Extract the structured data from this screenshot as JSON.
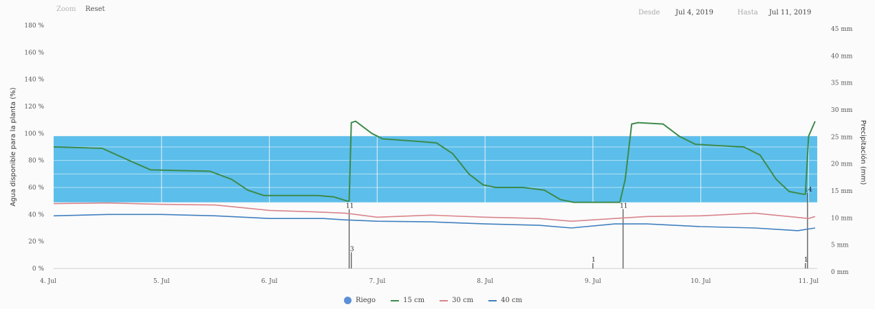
{
  "toolbar": {
    "zoom_label": "Zoom",
    "reset_label": "Reset"
  },
  "range": {
    "from_label": "Desde",
    "from_value": "Jul 4, 2019",
    "to_label": "Hasta",
    "to_value": "Jul 11, 2019"
  },
  "colors": {
    "band": "#3fb3e6",
    "grid": "#ffffff",
    "riego": "#5b8fd6",
    "s15": "#3c8a4a",
    "s30": "#d9838b",
    "s40": "#3f7fbf"
  },
  "chart_data": {
    "type": "line",
    "ylabel": "Agua disponible para la planta (%)",
    "y2label": "Precipitación (mm)",
    "ylim": [
      0,
      180
    ],
    "y2lim": [
      0,
      45
    ],
    "yticks": [
      "0 %",
      "20 %",
      "40 %",
      "60 %",
      "80 %",
      "100 %",
      "120 %",
      "140 %",
      "160 %",
      "180 %"
    ],
    "y2ticks": [
      "0 mm",
      "5 mm",
      "10 mm",
      "15 mm",
      "20 mm",
      "25 mm",
      "30 mm",
      "35 mm",
      "40 mm",
      "45 mm"
    ],
    "xlim": [
      0,
      7.08
    ],
    "xticks": [
      {
        "x": 0,
        "label": "4. Jul"
      },
      {
        "x": 1,
        "label": "5. Jul"
      },
      {
        "x": 2,
        "label": "6. Jul"
      },
      {
        "x": 3,
        "label": "7. Jul"
      },
      {
        "x": 4,
        "label": "8. Jul"
      },
      {
        "x": 5,
        "label": "9. Jul"
      },
      {
        "x": 6,
        "label": "10. Jul"
      },
      {
        "x": 7,
        "label": "11. Jul"
      }
    ],
    "band": [
      49,
      98
    ],
    "legend": [
      "Riego",
      "15 cm",
      "30 cm",
      "40 cm"
    ],
    "series": [
      {
        "name": "15 cm",
        "points": [
          [
            0,
            90
          ],
          [
            0.45,
            89
          ],
          [
            0.7,
            80
          ],
          [
            0.9,
            73
          ],
          [
            1.45,
            72
          ],
          [
            1.65,
            66
          ],
          [
            1.8,
            58
          ],
          [
            1.95,
            54
          ],
          [
            2.45,
            54
          ],
          [
            2.6,
            53
          ],
          [
            2.72,
            50
          ],
          [
            2.74,
            50
          ],
          [
            2.76,
            108
          ],
          [
            2.8,
            109
          ],
          [
            2.95,
            100
          ],
          [
            3.05,
            96
          ],
          [
            3.4,
            94
          ],
          [
            3.55,
            93
          ],
          [
            3.7,
            85
          ],
          [
            3.85,
            70
          ],
          [
            3.98,
            62
          ],
          [
            4.1,
            60
          ],
          [
            4.35,
            60
          ],
          [
            4.55,
            58
          ],
          [
            4.7,
            51
          ],
          [
            4.82,
            49
          ],
          [
            5.25,
            49
          ],
          [
            5.3,
            66
          ],
          [
            5.36,
            107
          ],
          [
            5.42,
            108
          ],
          [
            5.65,
            107
          ],
          [
            5.8,
            98
          ],
          [
            5.95,
            92
          ],
          [
            6.15,
            91
          ],
          [
            6.4,
            90
          ],
          [
            6.55,
            84
          ],
          [
            6.7,
            66
          ],
          [
            6.82,
            57
          ],
          [
            6.95,
            55
          ],
          [
            6.97,
            55
          ],
          [
            7.0,
            98
          ],
          [
            7.06,
            109
          ]
        ]
      },
      {
        "name": "30 cm",
        "points": [
          [
            0,
            48
          ],
          [
            0.5,
            48.5
          ],
          [
            1,
            47.5
          ],
          [
            1.5,
            47
          ],
          [
            2,
            43
          ],
          [
            2.4,
            42
          ],
          [
            2.7,
            41
          ],
          [
            3.0,
            38
          ],
          [
            3.5,
            39.5
          ],
          [
            4,
            38
          ],
          [
            4.5,
            37
          ],
          [
            4.8,
            35
          ],
          [
            5.2,
            37
          ],
          [
            5.5,
            38.5
          ],
          [
            6,
            39
          ],
          [
            6.5,
            41
          ],
          [
            7.0,
            37
          ],
          [
            7.06,
            38.5
          ]
        ]
      },
      {
        "name": "40 cm",
        "points": [
          [
            0,
            39
          ],
          [
            0.5,
            40
          ],
          [
            1,
            40
          ],
          [
            1.5,
            39
          ],
          [
            2,
            37
          ],
          [
            2.5,
            37
          ],
          [
            2.7,
            36
          ],
          [
            3,
            35
          ],
          [
            3.5,
            34.5
          ],
          [
            4,
            33
          ],
          [
            4.5,
            32
          ],
          [
            4.8,
            30
          ],
          [
            5.2,
            33
          ],
          [
            5.5,
            33
          ],
          [
            6,
            31
          ],
          [
            6.5,
            30
          ],
          [
            6.9,
            28
          ],
          [
            7.06,
            30
          ]
        ]
      }
    ],
    "riego": [
      {
        "x": 2.74,
        "mm": 11,
        "label": "11"
      },
      {
        "x": 2.76,
        "mm": 3,
        "label": "3"
      },
      {
        "x": 5.0,
        "mm": 1,
        "label": "1"
      },
      {
        "x": 5.28,
        "mm": 11,
        "label": "11"
      },
      {
        "x": 6.97,
        "mm": 1,
        "label": "1"
      },
      {
        "x": 6.99,
        "mm": 14,
        "label": "14"
      }
    ]
  }
}
